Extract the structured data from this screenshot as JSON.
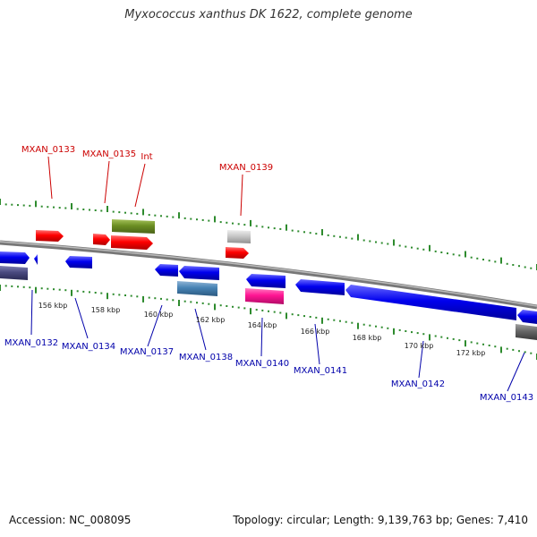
{
  "title": "Myxococcus xanthus DK 1622, complete genome",
  "footer": {
    "accession": "Accession: NC_008095",
    "summary": "Topology: circular; Length: 9,139,763 bp; Genes: 7,410"
  },
  "scale_labels": [
    "156 kbp",
    "158 kbp",
    "160 kbp",
    "162 kbp",
    "164 kbp",
    "166 kbp",
    "168 kbp",
    "170 kbp",
    "172 kbp"
  ],
  "forward_labels": [
    "MXAN_0133",
    "MXAN_0135",
    "Int",
    "MXAN_0139"
  ],
  "reverse_labels": [
    "MXAN_0132",
    "MXAN_0134",
    "MXAN_0137",
    "MXAN_0138",
    "MXAN_0140",
    "MXAN_0141",
    "MXAN_0142",
    "MXAN_0143"
  ],
  "colors": {
    "forward_label": "#cc0000",
    "reverse_label": "#0000aa",
    "tick": "#2e8b2e",
    "backbone": "#808080",
    "red_gene": "#ff0000",
    "blue_gene": "#0000ee",
    "olive_feature": "#6b8e23",
    "steelblue_feature": "#4682b4",
    "magenta_feature": "#ff1493",
    "gray_feature": "#c8c8c8",
    "darkgray_feature": "#666666",
    "slate_feature": "#4a4a80"
  }
}
